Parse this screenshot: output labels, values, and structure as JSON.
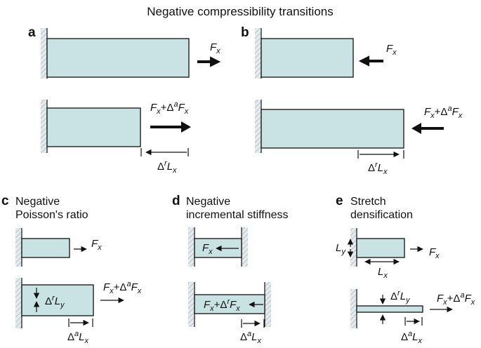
{
  "title": "Negative compressibility transitions",
  "colors": {
    "bar_fill": "#c9e2e3",
    "wall": "#b9c3c8",
    "ink": "#111111"
  },
  "panels": {
    "a": {
      "label": "a",
      "force_top": "F",
      "force_sub": "x",
      "force_bottom": "F",
      "force_bottom_sub": "x",
      "delta_force": "+Δ",
      "delta_sup": "a",
      "delta_F": "F",
      "delta_F_sub": "x",
      "dim": "Δ",
      "dim_sup": "r",
      "dim_L": "L",
      "dim_sub": "x"
    },
    "b": {
      "label": "b",
      "force_top": "F",
      "force_sub": "x",
      "force_bottom": "F",
      "force_bottom_sub": "x",
      "delta_force": "+Δ",
      "delta_sup": "a",
      "delta_F": "F",
      "delta_F_sub": "x",
      "dim": "Δ",
      "dim_sup": "r",
      "dim_L": "L",
      "dim_sub": "x"
    },
    "c": {
      "label": "c",
      "title_line1": "Negative",
      "title_line2": "Poisson's ratio",
      "force_top": "F",
      "force_sub": "x",
      "force_bottom": "F",
      "force_bottom_sub": "x",
      "delta_force": "+Δ",
      "delta_sup": "a",
      "delta_F": "F",
      "delta_F_sub": "x",
      "inner": "Δ",
      "inner_sup": "r",
      "inner_L": "L",
      "inner_sub": "y",
      "dim": "Δ",
      "dim_sup": "a",
      "dim_L": "L",
      "dim_sub": "x"
    },
    "d": {
      "label": "d",
      "title_line1": "Negative",
      "title_line2": "incremental stiffness",
      "force_top": "F",
      "force_sub": "x",
      "force_bottom": "F",
      "force_bottom_sub": "x",
      "delta_force": "+Δ",
      "delta_sup": "r",
      "delta_F": "F",
      "delta_F_sub": "x",
      "dim": "Δ",
      "dim_sup": "a",
      "dim_L": "L",
      "dim_sub": "x"
    },
    "e": {
      "label": "e",
      "title_line1": "Stretch",
      "title_line2": "densification",
      "Ly": "L",
      "Ly_sub": "y",
      "Lx": "L",
      "Lx_sub": "x",
      "force_top": "F",
      "force_sub": "x",
      "force_bottom": "F",
      "force_bottom_sub": "x",
      "delta_force": "+Δ",
      "delta_sup": "a",
      "delta_F": "F",
      "delta_F_sub": "x",
      "thin": "Δ",
      "thin_sup": "r",
      "thin_L": "L",
      "thin_sub": "y",
      "dim": "Δ",
      "dim_sup": "a",
      "dim_L": "L",
      "dim_sub": "x"
    }
  }
}
